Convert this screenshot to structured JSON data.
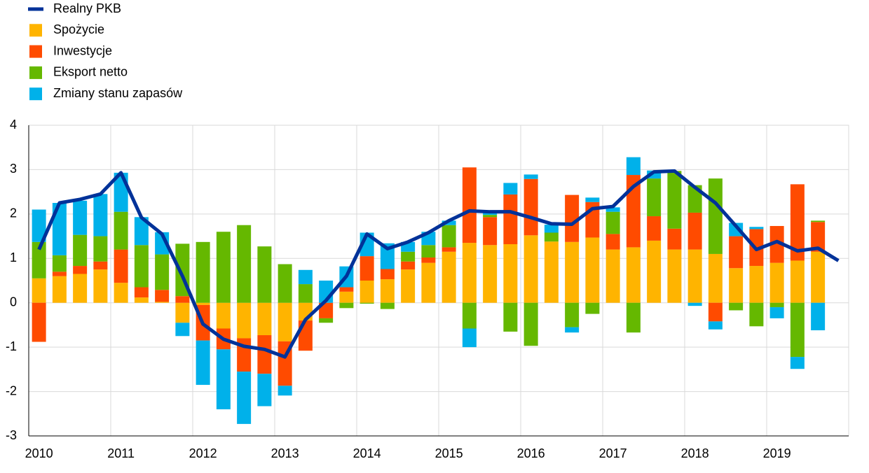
{
  "chart_data": {
    "type": "stacked_bar_line",
    "categories": [
      "2010",
      null,
      null,
      null,
      "2011",
      null,
      null,
      null,
      "2012",
      null,
      null,
      null,
      "2013",
      null,
      null,
      null,
      "2014",
      null,
      null,
      null,
      "2015",
      null,
      null,
      null,
      "2016",
      null,
      null,
      null,
      "2017",
      null,
      null,
      null,
      "2018",
      null,
      null,
      null,
      "2019",
      null,
      null,
      null
    ],
    "series": [
      {
        "name": "Spożycie",
        "color": "#ffb400",
        "kind": "bar",
        "values": [
          0.55,
          0.6,
          0.65,
          0.75,
          0.45,
          0.12,
          0.02,
          -0.45,
          -0.05,
          -0.58,
          -0.8,
          -0.73,
          -0.87,
          -0.4,
          0,
          0.25,
          0.5,
          0.53,
          0.75,
          0.9,
          1.15,
          1.35,
          1.3,
          1.32,
          1.52,
          1.38,
          1.37,
          1.47,
          1.2,
          1.25,
          1.4,
          1.2,
          1.2,
          1.1,
          0.78,
          0.83,
          0.9,
          0.95,
          1.15,
          null
        ]
      },
      {
        "name": "Inwestycje",
        "color": "#ff4b00",
        "kind": "bar",
        "values": [
          -0.88,
          0.1,
          0.18,
          0.18,
          0.75,
          0.23,
          0.27,
          0.15,
          -0.8,
          -0.47,
          -0.75,
          -0.87,
          -1.0,
          -0.68,
          -0.35,
          0.1,
          0.55,
          0.23,
          0.18,
          0.12,
          0.1,
          1.7,
          0.63,
          1.12,
          1.27,
          0,
          1.06,
          0.8,
          0.35,
          1.63,
          0.55,
          0.47,
          0.83,
          -0.42,
          0.72,
          0.83,
          0.83,
          1.72,
          0.67,
          null
        ]
      },
      {
        "name": "Eksport netto",
        "color": "#65b800",
        "kind": "bar",
        "values": [
          0.82,
          0.37,
          0.7,
          0.57,
          0.85,
          0.95,
          0.8,
          1.18,
          1.37,
          1.6,
          1.75,
          1.27,
          0.87,
          0.42,
          -0.1,
          -0.12,
          -0.02,
          -0.14,
          0.22,
          0.28,
          0.5,
          -0.58,
          0.05,
          -0.65,
          -0.97,
          0.2,
          -0.55,
          -0.25,
          0.5,
          -0.67,
          0.85,
          1.3,
          0.62,
          1.7,
          -0.17,
          -0.53,
          -0.1,
          -1.22,
          0.03,
          null
        ]
      },
      {
        "name": "Zmiany stanu zapasów",
        "color": "#00b1ea",
        "kind": "bar",
        "values": [
          0.73,
          1.18,
          0.77,
          0.95,
          0.88,
          0.63,
          0.5,
          -0.3,
          -1.0,
          -1.35,
          -1.18,
          -0.73,
          -0.22,
          0.32,
          0.5,
          0.47,
          0.53,
          0.58,
          0.22,
          0.3,
          0.1,
          -0.42,
          0.05,
          0.26,
          0.1,
          0.18,
          -0.12,
          0.1,
          0.1,
          0.4,
          0.18,
          0,
          -0.07,
          -0.18,
          0.3,
          0.05,
          -0.25,
          -0.27,
          -0.62,
          null
        ]
      },
      {
        "name": "Realny PKB",
        "color": "#003299",
        "kind": "line",
        "values": [
          1.2,
          2.25,
          2.33,
          2.45,
          2.93,
          1.92,
          1.55,
          0.6,
          -0.48,
          -0.82,
          -0.98,
          -1.05,
          -1.22,
          -0.38,
          0.05,
          0.6,
          1.55,
          1.22,
          1.37,
          1.58,
          1.85,
          2.07,
          2.05,
          2.05,
          1.92,
          1.78,
          1.77,
          2.12,
          2.17,
          2.62,
          2.95,
          2.97,
          2.6,
          2.25,
          1.73,
          1.2,
          1.38,
          1.17,
          1.23,
          0.95
        ]
      }
    ],
    "ylim": [
      -3,
      4
    ],
    "yticks": [
      -3,
      -2,
      -1,
      0,
      1,
      2,
      3,
      4
    ],
    "grid": true,
    "legend": "top-left"
  }
}
